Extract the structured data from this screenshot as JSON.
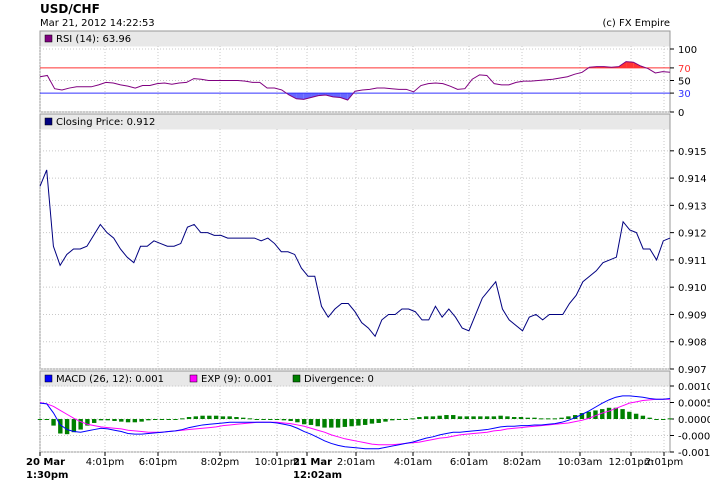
{
  "header": {
    "title": "USD/CHF",
    "datetime": "Mar 21, 2012 14:22:53",
    "copyright": "(c) FX Empire"
  },
  "colors": {
    "panel_bg": "#e8e8e8",
    "grid": "#c8c8c8",
    "border": "#999999",
    "rsi_line": "#800080",
    "rsi_upper_line": "#ff3333",
    "rsi_lower_line": "#3333ff",
    "rsi_overbought_fill": "#ff3333",
    "rsi_oversold_fill": "#6666ff",
    "price_line": "#000080",
    "macd_line": "#0000ff",
    "exp_line": "#ff00ff",
    "divergence_bar": "#008000"
  },
  "x_axis": {
    "labels": [
      {
        "line1": "20 Mar",
        "line2": "1:30pm",
        "bold": true
      },
      {
        "line1": "4:01pm",
        "line2": "",
        "bold": false
      },
      {
        "line1": "6:01pm",
        "line2": "",
        "bold": false
      },
      {
        "line1": "8:02pm",
        "line2": "",
        "bold": false
      },
      {
        "line1": "10:01pm",
        "line2": "",
        "bold": false
      },
      {
        "line1": "21 Mar",
        "line2": "12:02am",
        "bold": true
      },
      {
        "line1": "2:01am",
        "line2": "",
        "bold": false
      },
      {
        "line1": "4:01am",
        "line2": "",
        "bold": false
      },
      {
        "line1": "6:01am",
        "line2": "",
        "bold": false
      },
      {
        "line1": "8:02am",
        "line2": "",
        "bold": false
      },
      {
        "line1": "10:03am",
        "line2": "",
        "bold": false
      },
      {
        "line1": "12:01pm",
        "line2": "",
        "bold": false
      },
      {
        "line1": "2:01pm",
        "line2": "",
        "bold": false
      }
    ]
  },
  "chart_data": [
    {
      "type": "line",
      "panel": "rsi",
      "legend": "RSI (14): 63.96",
      "ylim": [
        0,
        100
      ],
      "yticks": [
        0,
        30,
        50,
        70,
        100
      ],
      "reference_lines": [
        {
          "value": 70,
          "label": "70"
        },
        {
          "value": 30,
          "label": "30"
        }
      ],
      "series": [
        {
          "name": "RSI (14)",
          "values": [
            56,
            58,
            37,
            35,
            38,
            40,
            40,
            40,
            43,
            47,
            46,
            43,
            41,
            38,
            42,
            42,
            45,
            46,
            44,
            46,
            47,
            53,
            52,
            50,
            50,
            50,
            50,
            50,
            49,
            47,
            47,
            38,
            38,
            35,
            27,
            21,
            20,
            23,
            26,
            27,
            24,
            23,
            19,
            33,
            35,
            36,
            38,
            38,
            37,
            36,
            36,
            32,
            42,
            45,
            46,
            45,
            41,
            36,
            37,
            52,
            59,
            58,
            45,
            43,
            43,
            47,
            49,
            49,
            50,
            51,
            52,
            54,
            56,
            60,
            63,
            71,
            72,
            72,
            71,
            72,
            80,
            79,
            73,
            69,
            62,
            64,
            63
          ]
        }
      ]
    },
    {
      "type": "line",
      "panel": "price",
      "legend": "Closing Price: 0.912",
      "ylim": [
        0.907,
        0.9158
      ],
      "yticks": [
        0.907,
        0.908,
        0.909,
        0.91,
        0.911,
        0.912,
        0.913,
        0.914,
        0.915
      ],
      "series": [
        {
          "name": "Closing Price",
          "values": [
            0.9137,
            0.9143,
            0.9115,
            0.9108,
            0.9112,
            0.9114,
            0.9114,
            0.9115,
            0.9119,
            0.9123,
            0.912,
            0.9118,
            0.9114,
            0.9111,
            0.9109,
            0.9115,
            0.9115,
            0.9117,
            0.9116,
            0.9115,
            0.9115,
            0.9116,
            0.9122,
            0.9123,
            0.912,
            0.912,
            0.9119,
            0.9119,
            0.9118,
            0.9118,
            0.9118,
            0.9118,
            0.9118,
            0.9117,
            0.9118,
            0.9116,
            0.9113,
            0.9113,
            0.9112,
            0.9107,
            0.9104,
            0.9104,
            0.9093,
            0.9089,
            0.9092,
            0.9094,
            0.9094,
            0.9091,
            0.9087,
            0.9085,
            0.9082,
            0.9088,
            0.909,
            0.909,
            0.9092,
            0.9092,
            0.9091,
            0.9088,
            0.9088,
            0.9093,
            0.9089,
            0.9092,
            0.9089,
            0.9085,
            0.9084,
            0.909,
            0.9096,
            0.9099,
            0.9102,
            0.9092,
            0.9088,
            0.9086,
            0.9084,
            0.9089,
            0.909,
            0.9088,
            0.909,
            0.909,
            0.909,
            0.9094,
            0.9097,
            0.9102,
            0.9104,
            0.9106,
            0.9109,
            0.911,
            0.9111,
            0.9124,
            0.9121,
            0.912,
            0.9114,
            0.9114,
            0.911,
            0.9117,
            0.9118
          ]
        }
      ]
    },
    {
      "type": "line",
      "panel": "macd",
      "legend": [
        {
          "label": "MACD (26, 12): 0.001",
          "color": "#0000ff"
        },
        {
          "label": "EXP (9): 0.001",
          "color": "#ff00ff"
        },
        {
          "label": "Divergence: 0",
          "color": "#008000"
        }
      ],
      "ylim": [
        -0.001,
        0.001
      ],
      "yticks": [
        -0.001,
        -0.0005,
        0,
        0.0005,
        0.001
      ],
      "ytick_labels": [
        "-0.0010",
        "-0.0005",
        "0.0000",
        "0.0005",
        "0.0010"
      ],
      "series": [
        {
          "name": "MACD (26, 12)",
          "values": [
            0.00048,
            0.00046,
            0.00018,
            -0.00018,
            -0.00032,
            -0.00038,
            -0.0004,
            -0.00036,
            -0.00032,
            -0.00028,
            -0.0003,
            -0.00034,
            -0.00038,
            -0.00044,
            -0.00046,
            -0.00046,
            -0.00044,
            -0.00042,
            -0.0004,
            -0.00038,
            -0.00036,
            -0.00032,
            -0.00026,
            -0.00022,
            -0.00018,
            -0.00016,
            -0.00014,
            -0.00012,
            -0.0001,
            -0.0001,
            -0.0001,
            -0.0001,
            -0.0001,
            -0.0001,
            -0.0001,
            -0.00012,
            -0.00016,
            -0.0002,
            -0.00028,
            -0.00038,
            -0.00046,
            -0.00056,
            -0.00066,
            -0.00074,
            -0.0008,
            -0.00084,
            -0.00086,
            -0.00088,
            -0.0009,
            -0.0009,
            -0.0009,
            -0.00086,
            -0.00082,
            -0.00078,
            -0.00074,
            -0.0007,
            -0.00064,
            -0.00058,
            -0.00054,
            -0.00048,
            -0.00044,
            -0.0004,
            -0.0004,
            -0.00038,
            -0.00036,
            -0.00034,
            -0.00032,
            -0.00028,
            -0.00024,
            -0.00022,
            -0.00022,
            -0.0002,
            -0.0002,
            -0.00018,
            -0.00018,
            -0.00016,
            -0.00014,
            -0.0001,
            -4e-05,
            4e-05,
            0.00014,
            0.00024,
            0.00036,
            0.00048,
            0.00058,
            0.00066,
            0.0007,
            0.0007,
            0.00068,
            0.00066,
            0.00062,
            0.0006,
            0.0006,
            0.00062
          ]
        },
        {
          "name": "EXP (9)",
          "values": [
            0.0005,
            0.00046,
            0.00038,
            0.00026,
            0.00014,
            2e-05,
            -8e-05,
            -0.00016,
            -0.0002,
            -0.00024,
            -0.00026,
            -0.00028,
            -0.0003,
            -0.00034,
            -0.00036,
            -0.00038,
            -0.0004,
            -0.0004,
            -0.0004,
            -0.00038,
            -0.00036,
            -0.00034,
            -0.00032,
            -0.0003,
            -0.00028,
            -0.00026,
            -0.00024,
            -0.0002,
            -0.00018,
            -0.00016,
            -0.00014,
            -0.00012,
            -0.0001,
            -0.0001,
            -0.0001,
            -0.0001,
            -0.00012,
            -0.00014,
            -0.00018,
            -0.00022,
            -0.00028,
            -0.00034,
            -0.0004,
            -0.00048,
            -0.00054,
            -0.0006,
            -0.00064,
            -0.00068,
            -0.00072,
            -0.00076,
            -0.00078,
            -0.00078,
            -0.00078,
            -0.00076,
            -0.00074,
            -0.00072,
            -0.0007,
            -0.00066,
            -0.00062,
            -0.00058,
            -0.00056,
            -0.00052,
            -0.00048,
            -0.00046,
            -0.00044,
            -0.00042,
            -0.0004,
            -0.00036,
            -0.00034,
            -0.0003,
            -0.00028,
            -0.00026,
            -0.00024,
            -0.00022,
            -0.0002,
            -0.00018,
            -0.00016,
            -0.00014,
            -0.00012,
            -8e-05,
            -4e-05,
            2e-05,
            0.0001,
            0.00018,
            0.00024,
            0.00032,
            0.0004,
            0.00048,
            0.00052,
            0.00056,
            0.00058,
            0.0006,
            0.0006,
            0.0006
          ]
        },
        {
          "name": "Divergence",
          "values": [
            -2e-05,
            0.0,
            -0.0002,
            -0.00044,
            -0.00046,
            -0.0004,
            -0.00032,
            -0.0002,
            -0.00012,
            -4e-05,
            -4e-05,
            -6e-05,
            -8e-05,
            -0.0001,
            -0.0001,
            -8e-05,
            -4e-05,
            -2e-05,
            0.0,
            0.0,
            0.0,
            2e-05,
            6e-05,
            8e-05,
            0.0001,
            0.0001,
            0.0001,
            8e-05,
            8e-05,
            6e-05,
            4e-05,
            2e-05,
            0.0,
            0.0,
            0.0,
            -2e-05,
            -4e-05,
            -6e-05,
            -0.0001,
            -0.00016,
            -0.00018,
            -0.00022,
            -0.00026,
            -0.00026,
            -0.00026,
            -0.00024,
            -0.00022,
            -0.0002,
            -0.00018,
            -0.00014,
            -0.00012,
            -8e-05,
            -4e-05,
            -2e-05,
            0.0,
            2e-05,
            6e-05,
            8e-05,
            8e-05,
            0.0001,
            0.00012,
            0.00012,
            8e-05,
            8e-05,
            8e-05,
            8e-05,
            8e-05,
            8e-05,
            0.0001,
            8e-05,
            6e-05,
            6e-05,
            4e-05,
            4e-05,
            2e-05,
            2e-05,
            2e-05,
            4e-05,
            8e-05,
            0.00012,
            0.00018,
            0.00022,
            0.00026,
            0.0003,
            0.00034,
            0.00034,
            0.0003,
            0.00022,
            0.00016,
            0.0001,
            4e-05,
            0.0,
            0.0,
            2e-05
          ]
        }
      ]
    }
  ]
}
